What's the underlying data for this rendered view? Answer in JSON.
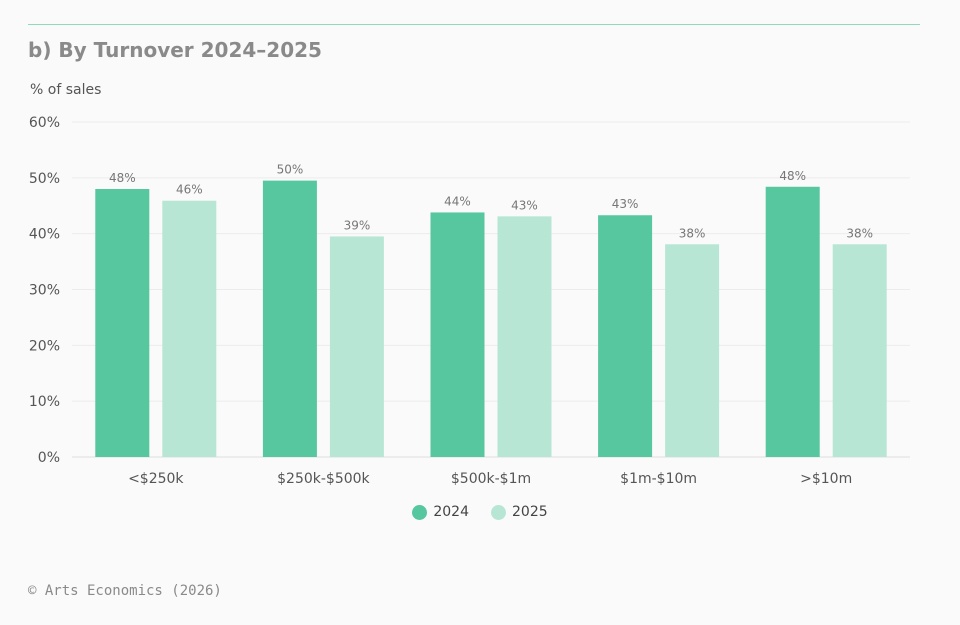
{
  "colors": {
    "series_2024": "#56c79f",
    "series_2025": "#b8e6d5",
    "grid": "#ececec",
    "axis": "#dddddd"
  },
  "chart_data": {
    "type": "bar",
    "title": "b) By Turnover 2024–2025",
    "ylabel": "% of sales",
    "xlabel": "",
    "ylim": [
      0,
      60
    ],
    "yticks": [
      0,
      10,
      20,
      30,
      40,
      50,
      60
    ],
    "ytick_labels": [
      "0%",
      "10%",
      "20%",
      "30%",
      "40%",
      "50%",
      "60%"
    ],
    "categories": [
      "<$250k",
      "$250k-$500k",
      "$500k-$1m",
      "$1m-$10m",
      ">$10m"
    ],
    "series": [
      {
        "name": "2024",
        "values": [
          48,
          49.5,
          43.8,
          43.3,
          48.4
        ],
        "labels": [
          "48%",
          "50%",
          "44%",
          "43%",
          "48%"
        ]
      },
      {
        "name": "2025",
        "values": [
          45.9,
          39.5,
          43.1,
          38.1,
          38.1
        ],
        "labels": [
          "46%",
          "39%",
          "43%",
          "38%",
          "38%"
        ]
      }
    ],
    "grid": true,
    "legend": "bottom-center"
  },
  "footer": "© Arts Economics (2026)"
}
